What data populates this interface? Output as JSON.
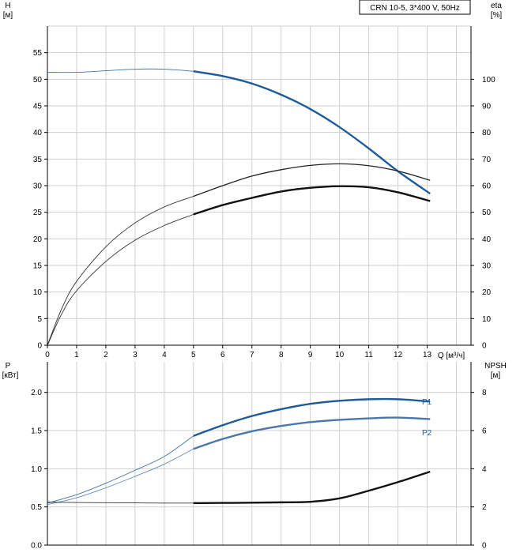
{
  "title": "CRN 10-5, 3*400 V, 50Hz",
  "chart_data": [
    {
      "type": "line",
      "x_label": "Q [м³/ч]",
      "x_ticks": [
        "0",
        "1",
        "2",
        "3",
        "4",
        "5",
        "6",
        "7",
        "8",
        "9",
        "10",
        "11",
        "12",
        "13"
      ],
      "xlim": [
        0,
        14.5
      ],
      "left_axis": {
        "name": "H",
        "unit": "[м]",
        "ylim": [
          0,
          60
        ],
        "ticks": [
          "0",
          "5",
          "10",
          "15",
          "20",
          "25",
          "30",
          "35",
          "40",
          "45",
          "50",
          "55"
        ]
      },
      "right_axis": {
        "name": "eta",
        "unit": "[%]",
        "ylim": [
          0,
          120
        ],
        "ticks": [
          "0",
          "10",
          "20",
          "30",
          "40",
          "50",
          "60",
          "70",
          "80",
          "90",
          "100"
        ]
      },
      "series": [
        {
          "id": "H",
          "axis": "left",
          "color": "#1f5a99",
          "x": [
            0,
            1,
            2,
            3,
            4,
            5,
            6,
            7,
            8,
            9,
            10,
            11,
            12,
            13.1
          ],
          "y": [
            51.3,
            51.3,
            51.6,
            51.9,
            51.9,
            51.5,
            50.6,
            49.2,
            47.1,
            44.4,
            41.0,
            37.0,
            32.7,
            28.5
          ]
        },
        {
          "id": "eta-thin",
          "axis": "right",
          "color": "#222222",
          "x": [
            0,
            0.5,
            1,
            2,
            3,
            4,
            5,
            6,
            7,
            8,
            9,
            10,
            11,
            12,
            13.1
          ],
          "y": [
            0,
            14,
            24,
            37,
            46,
            52,
            56,
            60,
            63.6,
            66,
            67.6,
            68.2,
            67.5,
            65.5,
            62
          ]
        },
        {
          "id": "eta-thick",
          "axis": "right",
          "color": "#111111",
          "x": [
            0,
            0.5,
            1,
            2,
            3,
            4,
            5,
            6,
            7,
            8,
            9,
            10,
            11,
            12,
            13.1
          ],
          "y": [
            0,
            12,
            20.5,
            31.5,
            39.5,
            45,
            49.2,
            52.7,
            55.4,
            57.8,
            59.2,
            59.8,
            59.4,
            57.5,
            54.2
          ]
        }
      ]
    },
    {
      "type": "line",
      "x_label": "",
      "xlim": [
        0,
        14.5
      ],
      "left_axis": {
        "name": "P",
        "unit": "[кВт]",
        "ylim": [
          0,
          2.4
        ],
        "ticks": [
          "0.0",
          "0.5",
          "1.0",
          "1.5",
          "2.0"
        ]
      },
      "right_axis": {
        "name": "NPSH",
        "unit": "[м]",
        "ylim": [
          0,
          9.6
        ],
        "ticks": [
          "0",
          "2",
          "4",
          "6",
          "8"
        ]
      },
      "series": [
        {
          "id": "P1",
          "name": "P1",
          "axis": "left",
          "color": "#1f5a99",
          "x": [
            0,
            1,
            2,
            3,
            4,
            5,
            6,
            7,
            8,
            9,
            10,
            11,
            12,
            13.1
          ],
          "y": [
            0.55,
            0.66,
            0.81,
            0.98,
            1.16,
            1.43,
            1.57,
            1.69,
            1.78,
            1.85,
            1.89,
            1.91,
            1.91,
            1.88
          ]
        },
        {
          "id": "P2",
          "name": "P2",
          "axis": "left",
          "color": "#4a77aa",
          "x": [
            0,
            1,
            2,
            3,
            4,
            5,
            6,
            7,
            8,
            9,
            10,
            11,
            12,
            13.1
          ],
          "y": [
            0.53,
            0.62,
            0.75,
            0.9,
            1.06,
            1.26,
            1.39,
            1.49,
            1.56,
            1.61,
            1.64,
            1.66,
            1.67,
            1.65
          ]
        },
        {
          "id": "NPSH",
          "axis": "right",
          "color": "#111111",
          "x": [
            0,
            1,
            2,
            3,
            4,
            5,
            6,
            7,
            8,
            9,
            10,
            11,
            12,
            13.1
          ],
          "y": [
            2.25,
            2.23,
            2.22,
            2.21,
            2.2,
            2.2,
            2.21,
            2.22,
            2.24,
            2.27,
            2.45,
            2.85,
            3.3,
            3.85
          ]
        }
      ]
    }
  ]
}
